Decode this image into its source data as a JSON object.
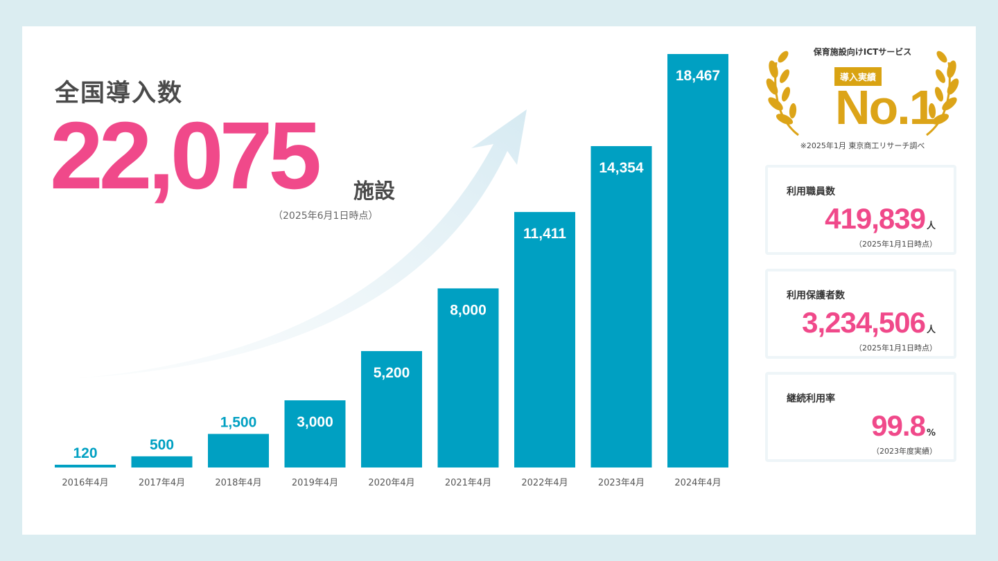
{
  "headline": "全国導入数",
  "total": {
    "value": "22,075",
    "unit": "施設",
    "as_of": "（2025年6月1日時点）"
  },
  "chart_data": {
    "type": "bar",
    "categories": [
      "2016年4月",
      "2017年4月",
      "2018年4月",
      "2019年4月",
      "2020年4月",
      "2021年4月",
      "2022年4月",
      "2023年4月",
      "2024年4月"
    ],
    "values": [
      120,
      500,
      1500,
      3000,
      5200,
      8000,
      11411,
      14354,
      18467
    ],
    "labels": [
      "120",
      "500",
      "1,500",
      "3,000",
      "5,200",
      "8,000",
      "11,411",
      "14,354",
      "18,467"
    ],
    "ylim": [
      0,
      18467
    ],
    "bar_color": "#00a0c2",
    "grid": false
  },
  "award": {
    "top": "保育施設向けICTサービス",
    "badge": "導入実績",
    "rank": "No.1",
    "note": "※2025年1月 東京商工リサーチ調べ",
    "color": "#dca418"
  },
  "stats": [
    {
      "label": "利用職員数",
      "value": "419,839",
      "unit": "人",
      "note": "（2025年1月1日時点）"
    },
    {
      "label": "利用保護者数",
      "value": "3,234,506",
      "unit": "人",
      "note": "（2025年1月1日時点）"
    },
    {
      "label": "継続利用率",
      "value": "99.8",
      "unit": "%",
      "note": "（2023年度実績）"
    }
  ],
  "accent_color": "#f0498a"
}
